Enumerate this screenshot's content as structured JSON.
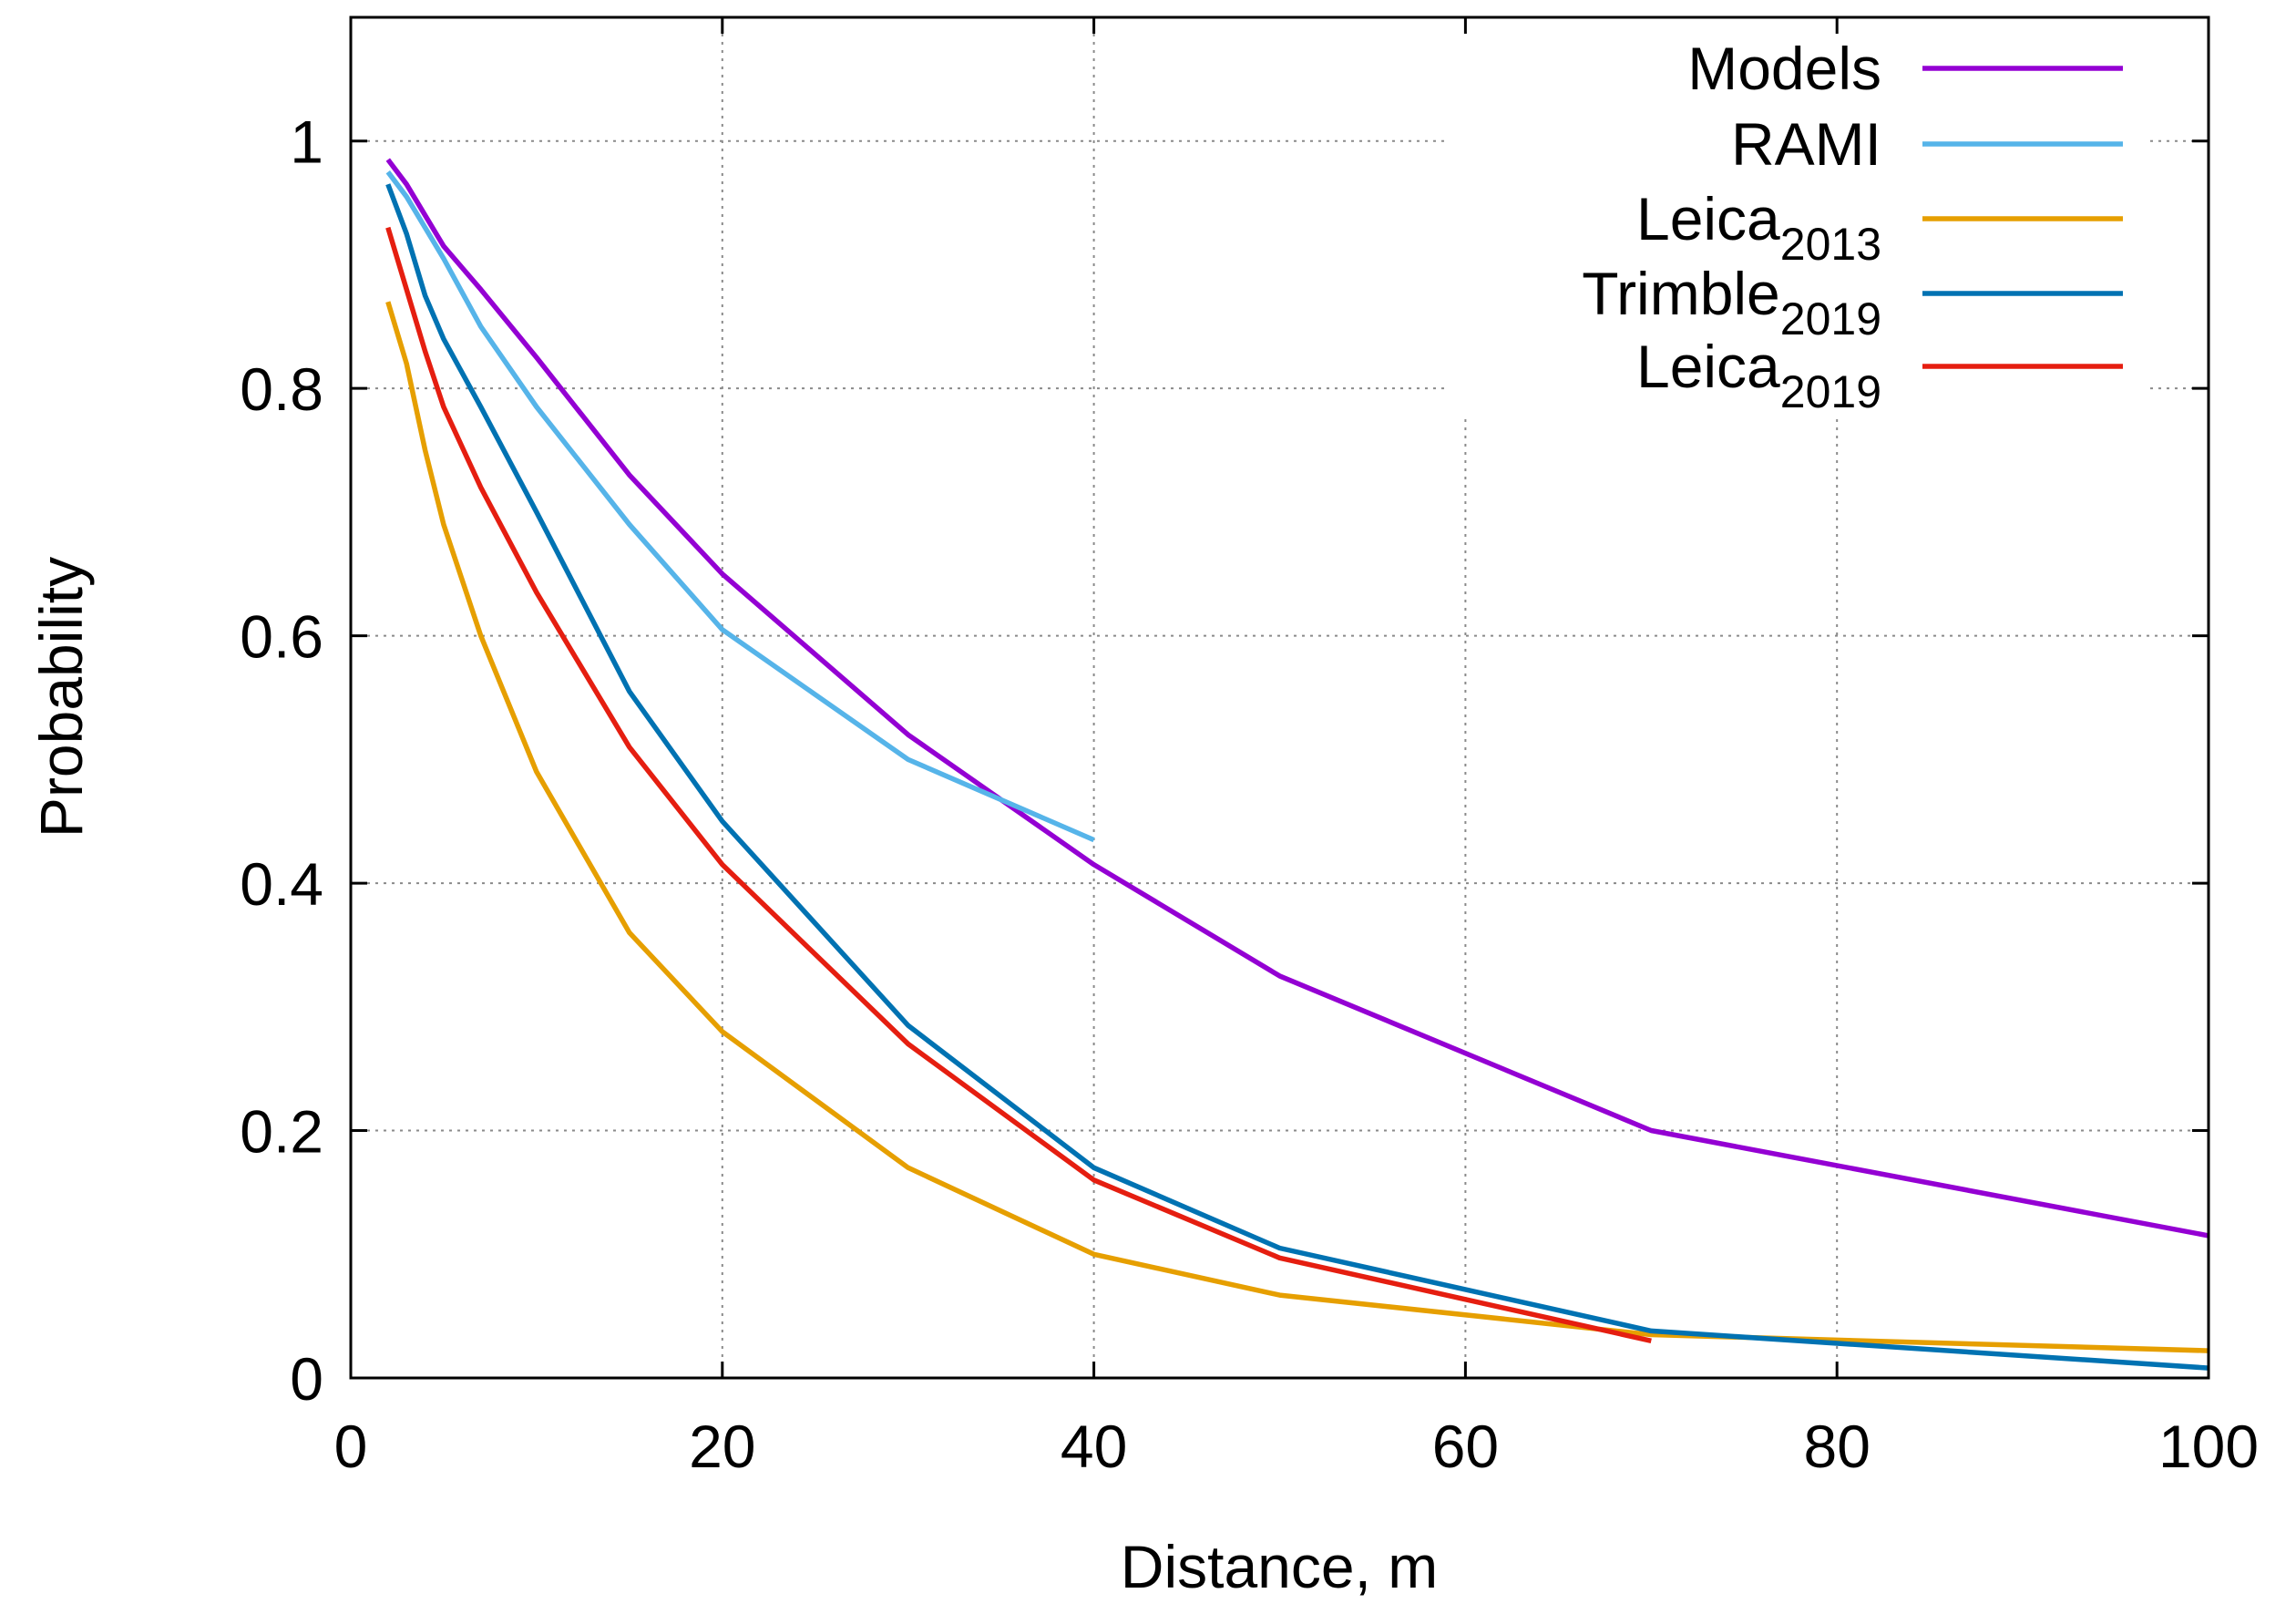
{
  "chart_data": {
    "type": "line",
    "title": "",
    "xlabel": "Distance, m",
    "ylabel": "Probability",
    "xlim": [
      0,
      100
    ],
    "ylim": [
      0,
      1.1
    ],
    "xticks": [
      0,
      20,
      40,
      60,
      80,
      100
    ],
    "xtick_labels": [
      "0",
      "20",
      "40",
      "60",
      "80",
      "100"
    ],
    "yticks": [
      0,
      0.2,
      0.4,
      0.6,
      0.8,
      1
    ],
    "ytick_labels": [
      "0",
      "0.2",
      "0.4",
      "0.6",
      "0.8",
      "1"
    ],
    "grid": true,
    "legend_position": "top-right",
    "series": [
      {
        "name": "Models",
        "label_main": "Models",
        "label_sub": "",
        "color": "#9400d3",
        "x": [
          2,
          3,
          5,
          7,
          10,
          15,
          20,
          30,
          40,
          50,
          70,
          100
        ],
        "y": [
          0.985,
          0.965,
          0.915,
          0.88,
          0.825,
          0.73,
          0.65,
          0.52,
          0.415,
          0.325,
          0.2,
          0.115
        ]
      },
      {
        "name": "RAMI",
        "label_main": "RAMI",
        "label_sub": "",
        "color": "#56b4e9",
        "x": [
          2,
          3,
          5,
          7,
          10,
          15,
          20,
          30,
          40
        ],
        "y": [
          0.975,
          0.955,
          0.905,
          0.85,
          0.785,
          0.69,
          0.605,
          0.5,
          0.435
        ]
      },
      {
        "name": "Leica2013",
        "label_main": "Leica",
        "label_sub": "2013",
        "color": "#e69f00",
        "x": [
          2,
          3,
          4,
          5,
          7,
          10,
          15,
          20,
          30,
          40,
          50,
          70,
          100
        ],
        "y": [
          0.87,
          0.82,
          0.75,
          0.69,
          0.6,
          0.49,
          0.36,
          0.28,
          0.17,
          0.1,
          0.067,
          0.035,
          0.022
        ]
      },
      {
        "name": "Trimble2019",
        "label_main": "Trimble",
        "label_sub": "2019",
        "color": "#0072b2",
        "x": [
          2,
          3,
          4,
          5,
          7,
          10,
          15,
          20,
          30,
          40,
          50,
          70,
          100
        ],
        "y": [
          0.965,
          0.925,
          0.875,
          0.84,
          0.785,
          0.7,
          0.555,
          0.45,
          0.285,
          0.17,
          0.105,
          0.038,
          0.008
        ]
      },
      {
        "name": "Leica2019",
        "label_main": "Leica",
        "label_sub": "2019",
        "color": "#e51e10",
        "x": [
          2,
          3,
          4,
          5,
          7,
          10,
          15,
          20,
          30,
          40,
          50,
          70
        ],
        "y": [
          0.93,
          0.88,
          0.83,
          0.785,
          0.72,
          0.635,
          0.51,
          0.415,
          0.27,
          0.16,
          0.097,
          0.03
        ]
      }
    ]
  }
}
